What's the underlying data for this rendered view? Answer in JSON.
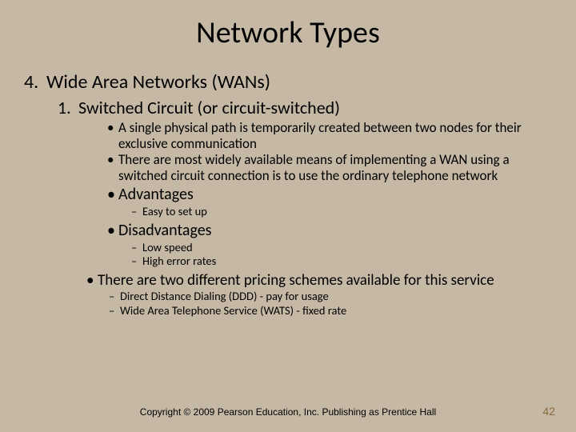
{
  "title": "Network Types",
  "section": {
    "num": "4.",
    "label": "Wide Area Networks (WANs)"
  },
  "sub": {
    "num": "1.",
    "label": "Switched Circuit (or circuit-switched)"
  },
  "bullets": {
    "b1": "A single physical path is temporarily created between two nodes for their exclusive communication",
    "b2": "There are most widely available means of implementing a WAN using a switched circuit connection is to use the ordinary telephone network",
    "b3": "Advantages",
    "adv1": "Easy to set up",
    "b4": "Disadvantages",
    "dis1": "Low speed",
    "dis2": "High error rates",
    "b5": "There are two different pricing schemes available for this service",
    "p1": "Direct Distance Dialing (DDD) - pay for usage",
    "p2": "Wide Area Telephone Service (WATS) - fixed rate"
  },
  "footer": "Copyright © 2009 Pearson Education, Inc.  Publishing as Prentice Hall",
  "pageNum": "42"
}
